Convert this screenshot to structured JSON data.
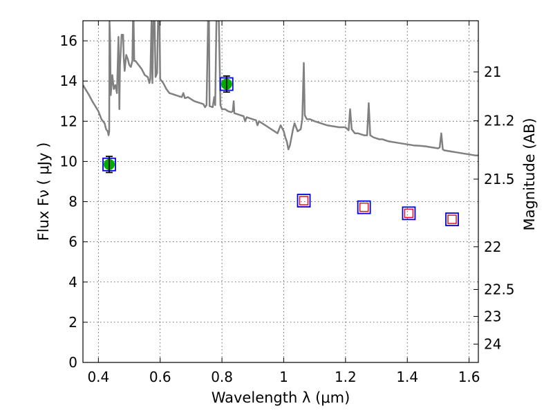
{
  "chart_data": {
    "type": "scatter",
    "xlabel": "Wavelength  λ (μm)",
    "ylabel": "Flux  Fν  ( μJy )",
    "y2label": "Magnitude (AB)",
    "xlim": [
      0.35,
      1.63
    ],
    "ylim": [
      0,
      17
    ],
    "xticks": [
      {
        "v": 0.4,
        "label": "0.4"
      },
      {
        "v": 0.6,
        "label": "0.6"
      },
      {
        "v": 0.8,
        "label": "0.8"
      },
      {
        "v": 1.0,
        "label": "1"
      },
      {
        "v": 1.2,
        "label": "1.2"
      },
      {
        "v": 1.4,
        "label": "1.4"
      },
      {
        "v": 1.6,
        "label": "1.6"
      }
    ],
    "yticks": [
      {
        "v": 0,
        "label": "0"
      },
      {
        "v": 2,
        "label": "2"
      },
      {
        "v": 4,
        "label": "4"
      },
      {
        "v": 6,
        "label": "6"
      },
      {
        "v": 8,
        "label": "8"
      },
      {
        "v": 10,
        "label": "10"
      },
      {
        "v": 12,
        "label": "12"
      },
      {
        "v": 14,
        "label": "14"
      },
      {
        "v": 16,
        "label": "16"
      }
    ],
    "y2ticks": [
      {
        "v": 21,
        "label": "21"
      },
      {
        "v": 21.2,
        "label": "21.2"
      },
      {
        "v": 21.5,
        "label": "21.5"
      },
      {
        "v": 22,
        "label": "22"
      },
      {
        "v": 22.5,
        "label": "22.5"
      },
      {
        "v": 23,
        "label": "23"
      },
      {
        "v": 24,
        "label": "24"
      }
    ],
    "grid": true,
    "colors": {
      "template": "#808080",
      "detected_fill": "#00aa00",
      "box_edge": "#0000dd",
      "model_box": "#e8101a",
      "errorbar": "#000000"
    },
    "template_spectrum": [
      [
        0.35,
        13.8
      ],
      [
        0.36,
        13.55
      ],
      [
        0.37,
        13.3
      ],
      [
        0.38,
        13.0
      ],
      [
        0.39,
        12.75
      ],
      [
        0.4,
        12.5
      ],
      [
        0.41,
        12.1
      ],
      [
        0.42,
        11.9
      ],
      [
        0.425,
        11.6
      ],
      [
        0.43,
        11.5
      ],
      [
        0.433,
        11.3
      ],
      [
        0.435,
        11.5
      ],
      [
        0.436,
        17.0
      ],
      [
        0.438,
        16.0
      ],
      [
        0.44,
        13.3
      ],
      [
        0.445,
        14.3
      ],
      [
        0.45,
        13.6
      ],
      [
        0.455,
        13.8
      ],
      [
        0.46,
        13.4
      ],
      [
        0.465,
        16.2
      ],
      [
        0.468,
        12.6
      ],
      [
        0.47,
        14.8
      ],
      [
        0.475,
        16.3
      ],
      [
        0.48,
        16.3
      ],
      [
        0.482,
        15.2
      ],
      [
        0.485,
        14.5
      ],
      [
        0.49,
        15.3
      ],
      [
        0.495,
        15.1
      ],
      [
        0.5,
        14.8
      ],
      [
        0.505,
        14.7
      ],
      [
        0.51,
        15.0
      ],
      [
        0.512,
        17.0
      ],
      [
        0.514,
        17.0
      ],
      [
        0.516,
        15.0
      ],
      [
        0.52,
        15.0
      ],
      [
        0.53,
        14.8
      ],
      [
        0.54,
        14.6
      ],
      [
        0.55,
        14.3
      ],
      [
        0.56,
        14.2
      ],
      [
        0.565,
        13.9
      ],
      [
        0.568,
        14.1
      ],
      [
        0.572,
        17.0
      ],
      [
        0.575,
        13.9
      ],
      [
        0.578,
        17.0
      ],
      [
        0.582,
        17.0
      ],
      [
        0.585,
        14.2
      ],
      [
        0.59,
        14.4
      ],
      [
        0.593,
        17.0
      ],
      [
        0.598,
        17.0
      ],
      [
        0.6,
        14.1
      ],
      [
        0.61,
        13.9
      ],
      [
        0.62,
        13.6
      ],
      [
        0.63,
        13.4
      ],
      [
        0.64,
        13.35
      ],
      [
        0.65,
        13.3
      ],
      [
        0.66,
        13.25
      ],
      [
        0.67,
        13.2
      ],
      [
        0.675,
        13.4
      ],
      [
        0.68,
        13.15
      ],
      [
        0.69,
        13.2
      ],
      [
        0.7,
        13.1
      ],
      [
        0.71,
        13.0
      ],
      [
        0.72,
        12.95
      ],
      [
        0.73,
        12.9
      ],
      [
        0.74,
        12.85
      ],
      [
        0.745,
        12.7
      ],
      [
        0.75,
        12.8
      ],
      [
        0.755,
        17.0
      ],
      [
        0.758,
        17.0
      ],
      [
        0.76,
        12.75
      ],
      [
        0.77,
        12.7
      ],
      [
        0.775,
        13.2
      ],
      [
        0.778,
        12.8
      ],
      [
        0.782,
        17.0
      ],
      [
        0.79,
        17.0
      ],
      [
        0.795,
        12.8
      ],
      [
        0.8,
        12.6
      ],
      [
        0.81,
        12.6
      ],
      [
        0.82,
        12.5
      ],
      [
        0.83,
        12.45
      ],
      [
        0.835,
        12.5
      ],
      [
        0.838,
        13.0
      ],
      [
        0.84,
        12.4
      ],
      [
        0.85,
        12.35
      ],
      [
        0.86,
        12.3
      ],
      [
        0.87,
        12.25
      ],
      [
        0.875,
        12.0
      ],
      [
        0.88,
        12.2
      ],
      [
        0.89,
        12.15
      ],
      [
        0.9,
        12.1
      ],
      [
        0.91,
        12.05
      ],
      [
        0.915,
        11.8
      ],
      [
        0.92,
        12.0
      ],
      [
        0.93,
        11.9
      ],
      [
        0.94,
        11.8
      ],
      [
        0.95,
        11.7
      ],
      [
        0.96,
        11.6
      ],
      [
        0.97,
        11.5
      ],
      [
        0.98,
        11.4
      ],
      [
        0.99,
        11.8
      ],
      [
        1.0,
        11.5
      ],
      [
        1.005,
        11.2
      ],
      [
        1.01,
        11.0
      ],
      [
        1.015,
        10.6
      ],
      [
        1.02,
        10.8
      ],
      [
        1.03,
        11.6
      ],
      [
        1.035,
        11.9
      ],
      [
        1.045,
        11.5
      ],
      [
        1.055,
        11.6
      ],
      [
        1.06,
        12.1
      ],
      [
        1.063,
        13.8
      ],
      [
        1.065,
        14.9
      ],
      [
        1.068,
        12.3
      ],
      [
        1.075,
        12.1
      ],
      [
        1.085,
        12.1
      ],
      [
        1.1,
        12.0
      ],
      [
        1.12,
        11.9
      ],
      [
        1.14,
        11.8
      ],
      [
        1.16,
        11.75
      ],
      [
        1.18,
        11.7
      ],
      [
        1.2,
        11.7
      ],
      [
        1.21,
        11.55
      ],
      [
        1.215,
        12.6
      ],
      [
        1.22,
        11.6
      ],
      [
        1.23,
        11.4
      ],
      [
        1.24,
        11.4
      ],
      [
        1.25,
        11.35
      ],
      [
        1.26,
        11.3
      ],
      [
        1.27,
        11.3
      ],
      [
        1.275,
        12.9
      ],
      [
        1.28,
        11.3
      ],
      [
        1.29,
        11.2
      ],
      [
        1.3,
        11.15
      ],
      [
        1.31,
        11.1
      ],
      [
        1.32,
        11.1
      ],
      [
        1.33,
        11.05
      ],
      [
        1.34,
        11.0
      ],
      [
        1.36,
        10.95
      ],
      [
        1.38,
        10.9
      ],
      [
        1.4,
        10.85
      ],
      [
        1.42,
        10.8
      ],
      [
        1.44,
        10.78
      ],
      [
        1.46,
        10.75
      ],
      [
        1.48,
        10.7
      ],
      [
        1.5,
        10.65
      ],
      [
        1.505,
        10.7
      ],
      [
        1.51,
        11.4
      ],
      [
        1.515,
        10.6
      ],
      [
        1.52,
        10.55
      ],
      [
        1.54,
        10.5
      ],
      [
        1.56,
        10.45
      ],
      [
        1.58,
        10.4
      ],
      [
        1.6,
        10.35
      ],
      [
        1.62,
        10.3
      ],
      [
        1.63,
        10.3
      ]
    ],
    "detections": [
      {
        "x": 0.435,
        "y": 9.85,
        "err": 0.4
      },
      {
        "x": 0.815,
        "y": 13.85,
        "err": 0.4
      }
    ],
    "photometry_boxes": [
      {
        "x": 0.435,
        "y": 9.85
      },
      {
        "x": 0.815,
        "y": 13.85
      },
      {
        "x": 1.065,
        "y": 8.05
      },
      {
        "x": 1.26,
        "y": 7.72
      },
      {
        "x": 1.405,
        "y": 7.42
      },
      {
        "x": 1.545,
        "y": 7.12
      }
    ],
    "model_boxes": [
      {
        "x": 1.065,
        "y": 8.05
      },
      {
        "x": 1.26,
        "y": 7.72
      },
      {
        "x": 1.405,
        "y": 7.42
      },
      {
        "x": 1.545,
        "y": 7.12
      }
    ]
  }
}
